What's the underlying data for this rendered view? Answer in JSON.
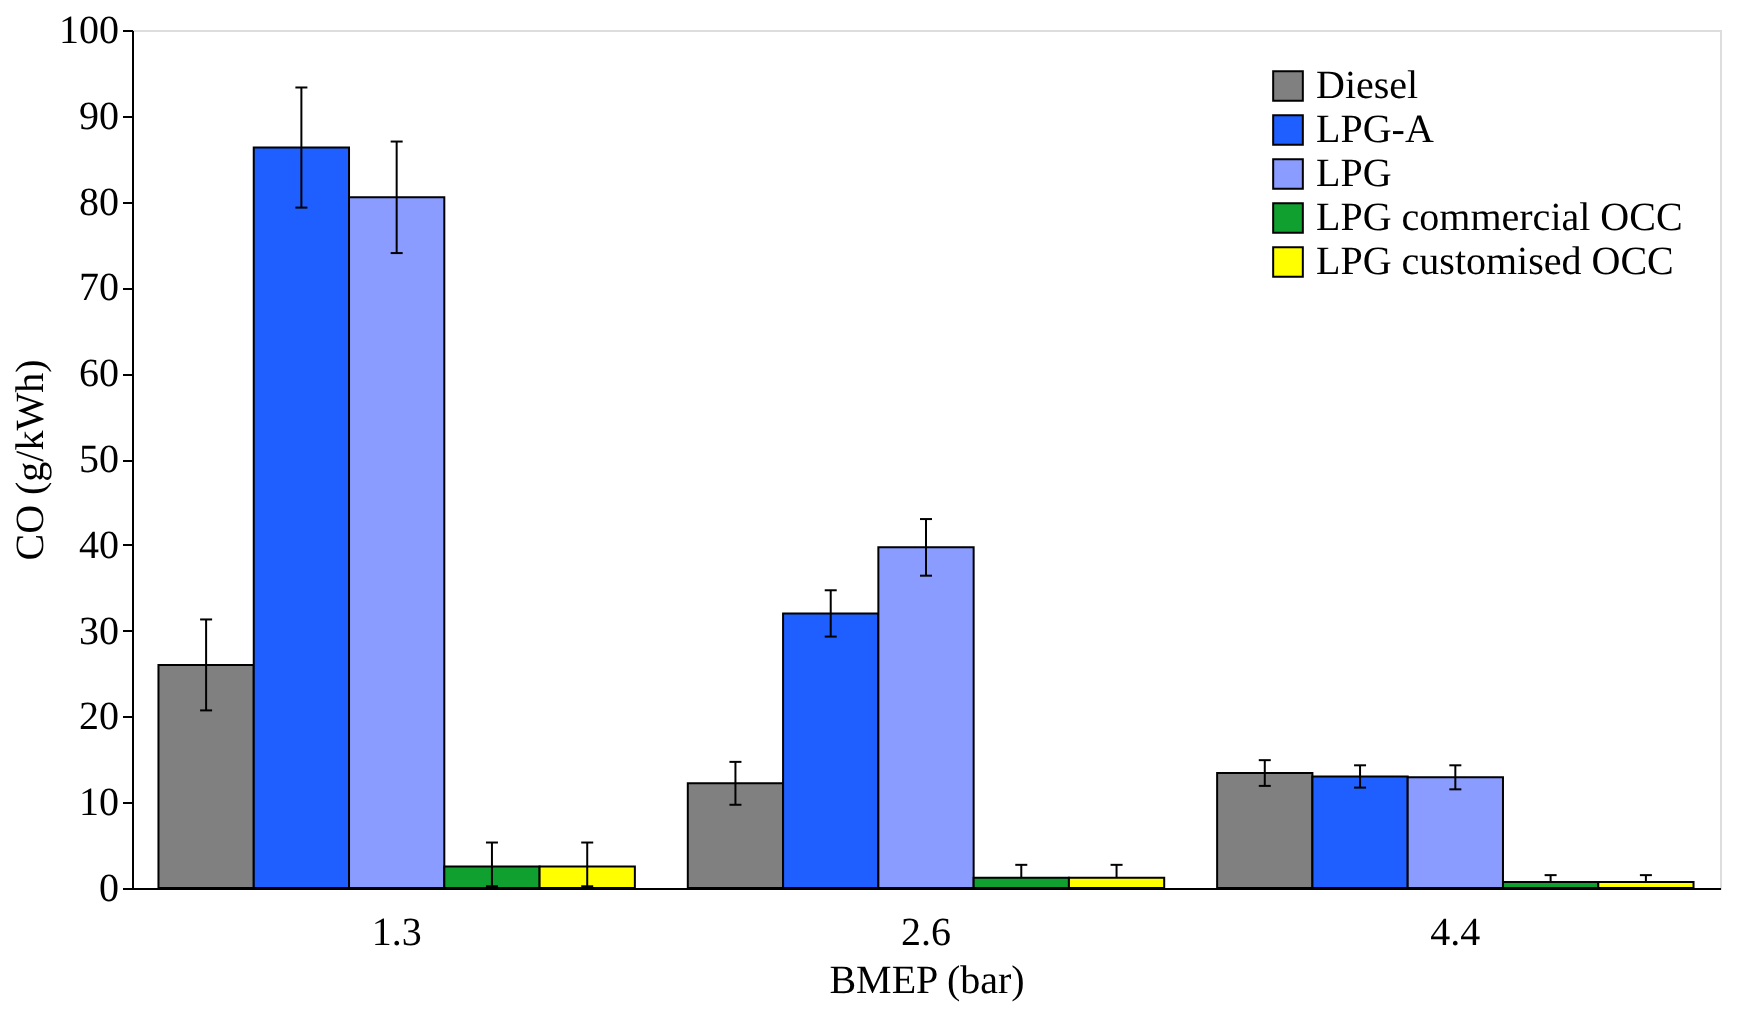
{
  "chart_data": {
    "type": "bar",
    "xlabel": "BMEP (bar)",
    "ylabel": "CO  (g/kWh)",
    "categories": [
      "1.3",
      "2.6",
      "4.4"
    ],
    "series": [
      {
        "name": "Diesel",
        "color": "#808080",
        "values": [
          26,
          12.2,
          13.4
        ],
        "errors": [
          5.3,
          2.5,
          1.5
        ]
      },
      {
        "name": "LPG-A",
        "color": "#1f5fff",
        "values": [
          86.3,
          32,
          13
        ],
        "errors": [
          7,
          2.7,
          1.3
        ]
      },
      {
        "name": "LPG",
        "color": "#8a9cff",
        "values": [
          80.5,
          39.7,
          12.9
        ],
        "errors": [
          6.5,
          3.3,
          1.4
        ]
      },
      {
        "name": "LPG commercial OCC",
        "color": "#10a030",
        "values": [
          2.5,
          1.2,
          0.7
        ],
        "errors": [
          [
            0.2,
            5.3
          ],
          [
            1.2,
            2.7
          ],
          [
            0.7,
            1.5
          ]
        ]
      },
      {
        "name": "LPG customised OCC",
        "color": "#ffff00",
        "values": [
          2.5,
          1.2,
          0.7
        ],
        "errors": [
          [
            0.2,
            5.3
          ],
          [
            1.2,
            2.7
          ],
          [
            0.7,
            1.5
          ]
        ]
      }
    ],
    "ylim": [
      0,
      100
    ],
    "yticks": [
      0,
      10,
      20,
      30,
      40,
      50,
      60,
      70,
      80,
      90,
      100
    ],
    "grid": false,
    "legend": "top right"
  }
}
